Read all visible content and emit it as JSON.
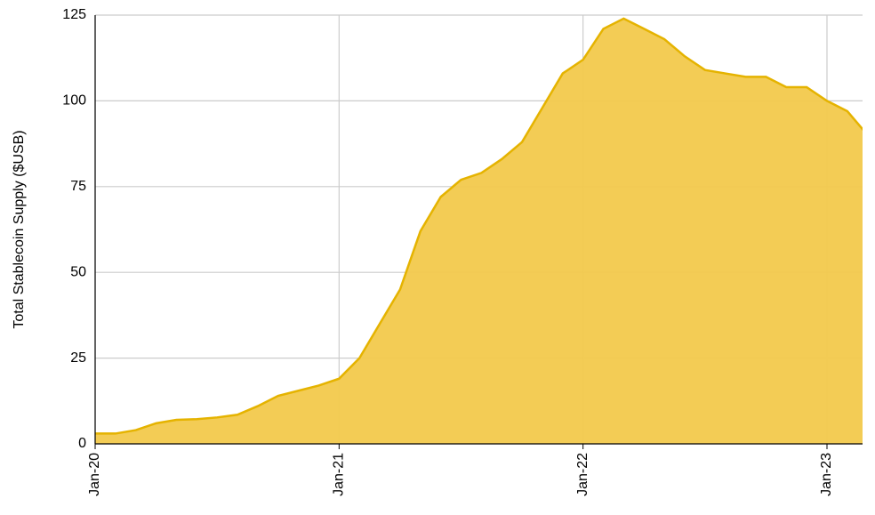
{
  "chart_data": {
    "type": "area",
    "y_label": "Total Stablecoin Supply ($USB)",
    "categories": [
      "Jan-20",
      null,
      null,
      null,
      null,
      null,
      null,
      null,
      null,
      null,
      null,
      null,
      "Jan-21",
      null,
      null,
      null,
      null,
      null,
      null,
      null,
      null,
      null,
      null,
      null,
      "Jan-22",
      null,
      null,
      null,
      null,
      null,
      null,
      null,
      null,
      null,
      null,
      null,
      "Jan-23",
      null,
      null
    ],
    "series": [
      {
        "name": "Total Stablecoin Supply",
        "color": "#f2c94c",
        "values": [
          3,
          3,
          4,
          6,
          7,
          7.2,
          7.7,
          8.5,
          11,
          14,
          15.5,
          17,
          19,
          25,
          35,
          45,
          62,
          72,
          77,
          79,
          83,
          88,
          98,
          108,
          112,
          121,
          124,
          121,
          118,
          113,
          109,
          108,
          107,
          107,
          104,
          104,
          100,
          97,
          90
        ]
      }
    ],
    "ylim": [
      0,
      125
    ],
    "yticks": [
      0,
      25,
      50,
      75,
      100,
      125
    ],
    "grid": true
  }
}
